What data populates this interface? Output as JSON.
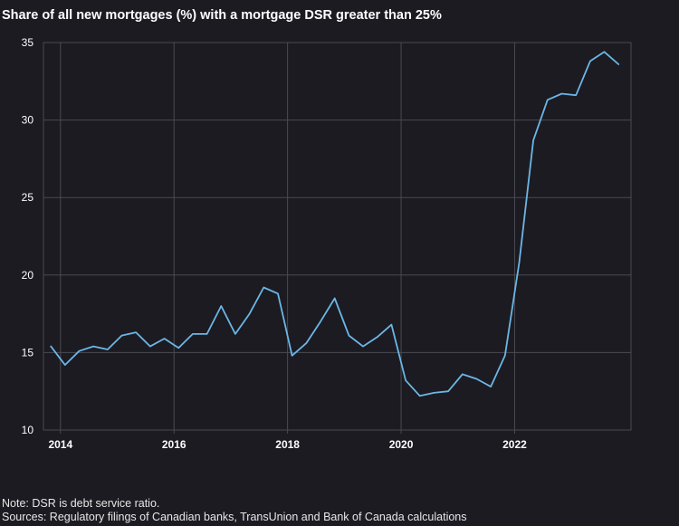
{
  "chart_data": {
    "type": "line",
    "title": "Share of all new mortgages (%) with a mortgage DSR greater than 25%",
    "xlabel": "",
    "ylabel": "",
    "ylim": [
      10,
      35
    ],
    "xlim": [
      2013.7,
      2024.05
    ],
    "yticks": [
      10,
      15,
      20,
      25,
      30,
      35
    ],
    "xticks": [
      2014,
      2016,
      2018,
      2020,
      2022
    ],
    "grid": true,
    "colors": {
      "background": "#1c1b22",
      "line": "#6bb7e6",
      "grid": "#4a4a52"
    },
    "series": [
      {
        "x": [
          2013.83,
          2014.08,
          2014.33,
          2014.58,
          2014.83,
          2015.08,
          2015.33,
          2015.58,
          2015.83,
          2016.08,
          2016.33,
          2016.58,
          2016.83,
          2017.08,
          2017.33,
          2017.58,
          2017.83,
          2018.08,
          2018.33,
          2018.58,
          2018.83,
          2019.08,
          2019.33,
          2019.58,
          2019.83,
          2020.08,
          2020.33,
          2020.58,
          2020.83,
          2021.08,
          2021.33,
          2021.58,
          2021.83,
          2022.08,
          2022.33,
          2022.58,
          2022.83,
          2023.08,
          2023.33,
          2023.58,
          2023.83
        ],
        "y": [
          15.4,
          14.2,
          15.1,
          15.4,
          15.2,
          16.1,
          16.3,
          15.4,
          15.9,
          15.3,
          16.2,
          16.2,
          18.0,
          16.2,
          17.5,
          19.2,
          18.8,
          14.8,
          15.6,
          17.0,
          18.5,
          16.1,
          15.4,
          16.0,
          16.8,
          13.2,
          12.2,
          12.4,
          12.5,
          13.6,
          13.3,
          12.8,
          14.8,
          20.8,
          28.7,
          31.3,
          31.7,
          31.6,
          33.8,
          34.4,
          33.6
        ]
      }
    ]
  },
  "notes": {
    "line1": "Note: DSR is debt service ratio.",
    "line2": "Sources: Regulatory filings of Canadian banks, TransUnion and Bank of Canada calculations"
  }
}
